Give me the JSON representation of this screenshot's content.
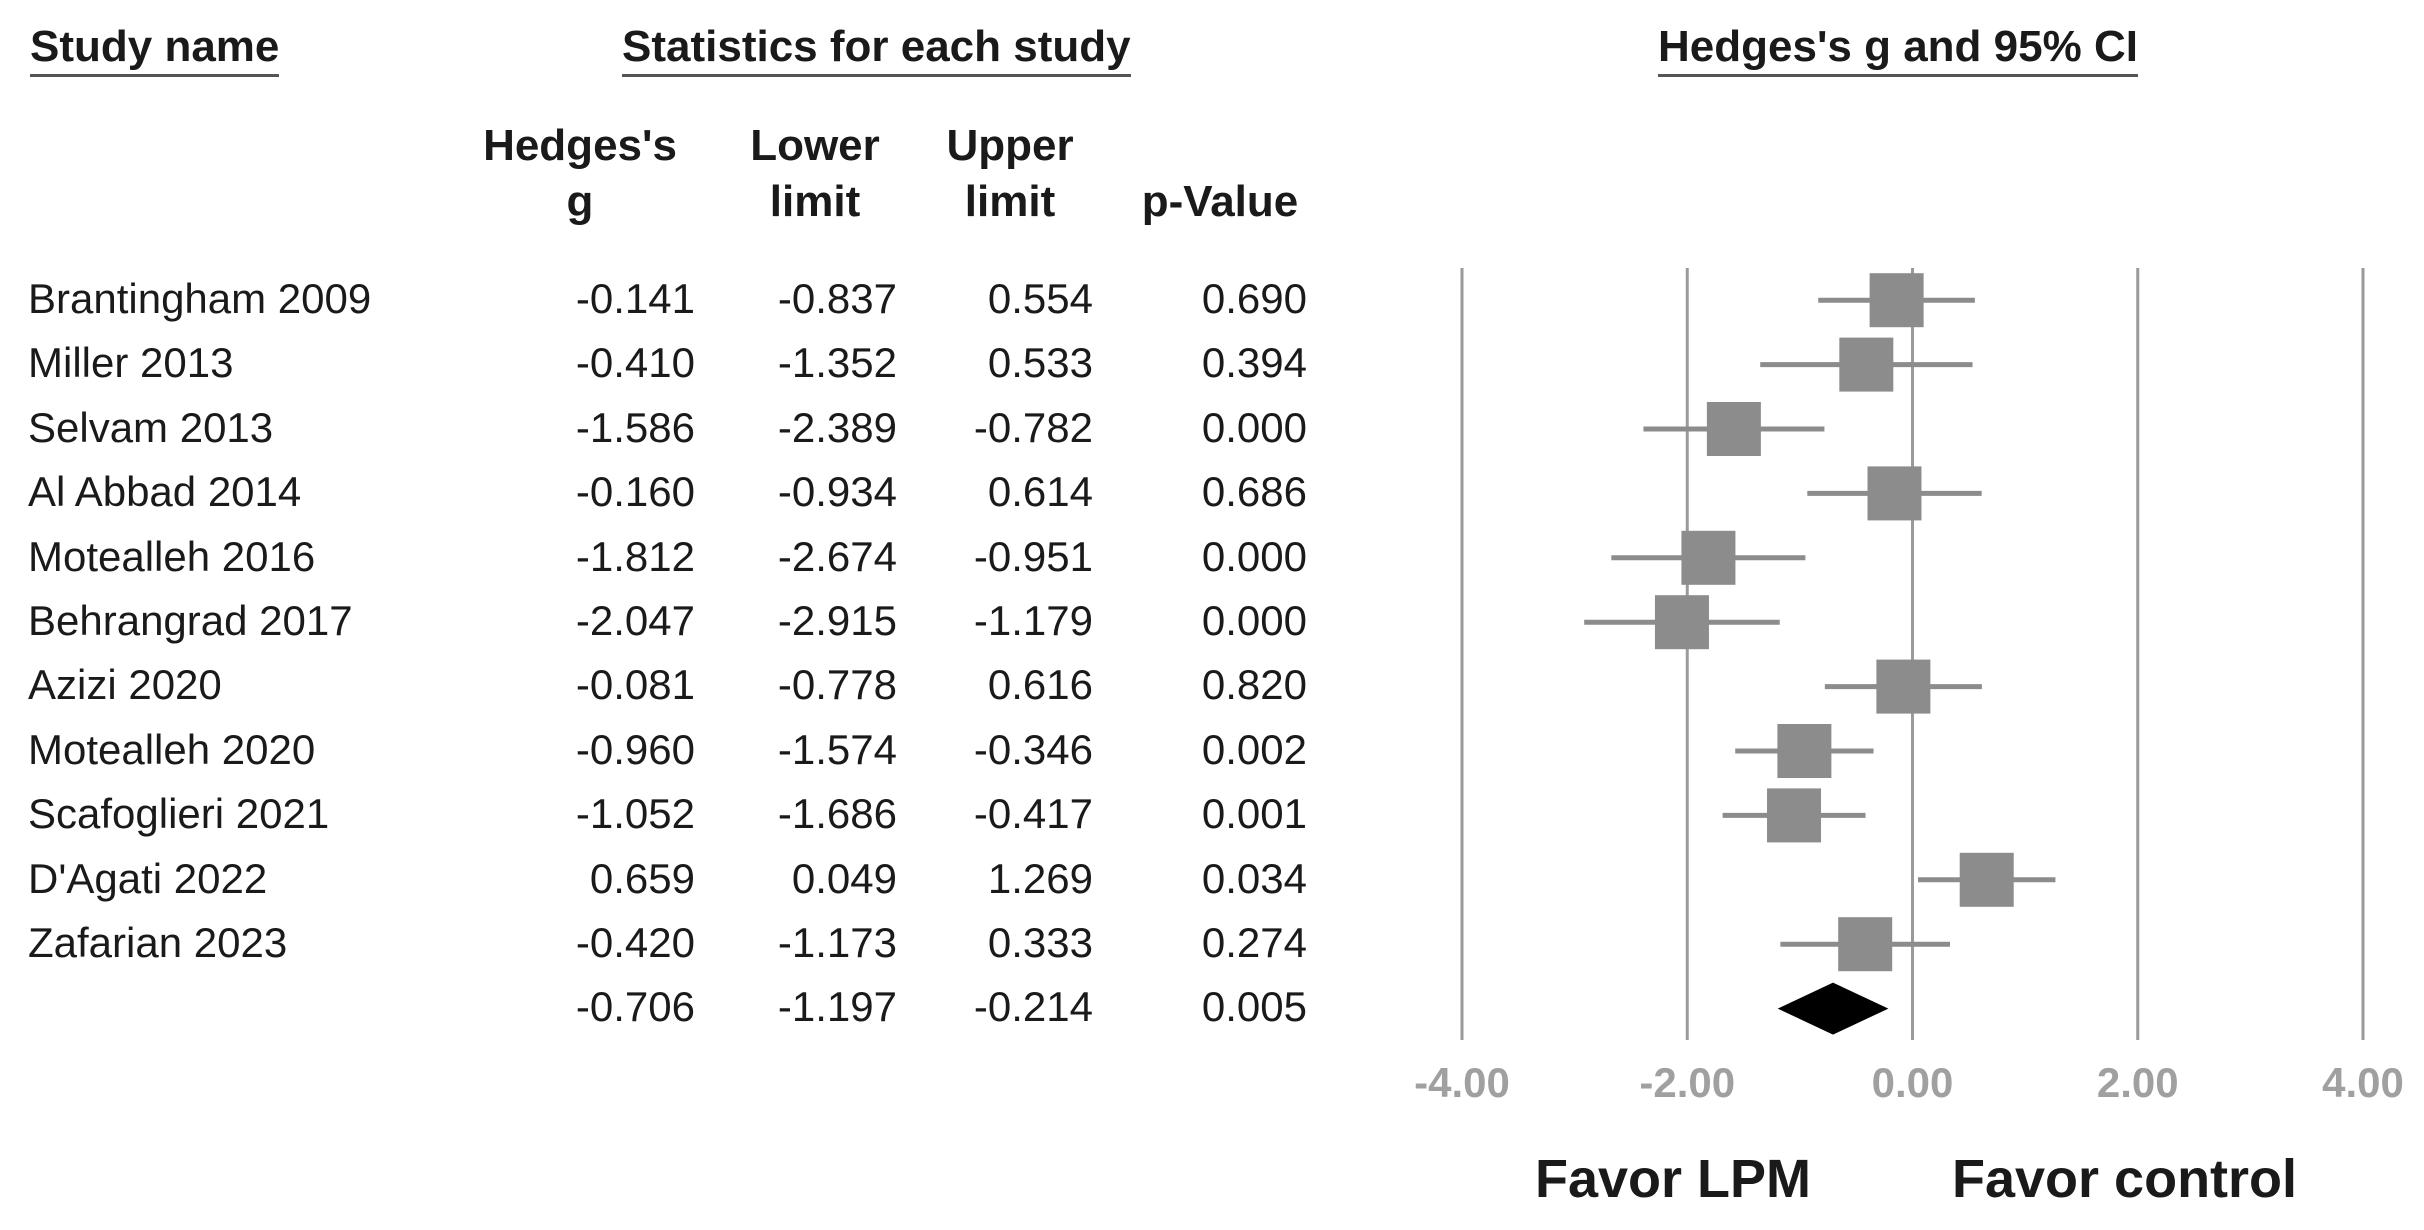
{
  "headers": {
    "study_name": "Study name",
    "statistics": "Statistics for each study",
    "plot_title": "Hedges's g and 95% CI"
  },
  "columns": {
    "g": [
      "Hedges's",
      "g"
    ],
    "lower": [
      "Lower",
      "limit"
    ],
    "upper": [
      "Upper",
      "limit"
    ],
    "p": [
      "",
      "p-Value"
    ]
  },
  "rows": [
    {
      "name": "Brantingham 2009",
      "g": "-0.141",
      "lower": "-0.837",
      "upper": "0.554",
      "p": "0.690"
    },
    {
      "name": "Miller 2013",
      "g": "-0.410",
      "lower": "-1.352",
      "upper": "0.533",
      "p": "0.394"
    },
    {
      "name": "Selvam 2013",
      "g": "-1.586",
      "lower": "-2.389",
      "upper": "-0.782",
      "p": "0.000"
    },
    {
      "name": "Al Abbad 2014",
      "g": "-0.160",
      "lower": "-0.934",
      "upper": "0.614",
      "p": "0.686"
    },
    {
      "name": "Motealleh 2016",
      "g": "-1.812",
      "lower": "-2.674",
      "upper": "-0.951",
      "p": "0.000"
    },
    {
      "name": "Behrangrad 2017",
      "g": "-2.047",
      "lower": "-2.915",
      "upper": "-1.179",
      "p": "0.000"
    },
    {
      "name": "Azizi 2020",
      "g": "-0.081",
      "lower": "-0.778",
      "upper": "0.616",
      "p": "0.820"
    },
    {
      "name": "Motealleh 2020",
      "g": "-0.960",
      "lower": "-1.574",
      "upper": "-0.346",
      "p": "0.002"
    },
    {
      "name": "Scafoglieri 2021",
      "g": "-1.052",
      "lower": "-1.686",
      "upper": "-0.417",
      "p": "0.001"
    },
    {
      "name": "D'Agati 2022",
      "g": "0.659",
      "lower": "0.049",
      "upper": "1.269",
      "p": "0.034"
    },
    {
      "name": "Zafarian 2023",
      "g": "-0.420",
      "lower": "-1.173",
      "upper": "0.333",
      "p": "0.274"
    }
  ],
  "summary": {
    "name": "",
    "g": "-0.706",
    "lower": "-1.197",
    "upper": "-0.214",
    "p": "0.005"
  },
  "favor": {
    "left": "Favor LPM",
    "right": "Favor control"
  },
  "colors": {
    "marker": "#8c8c8c",
    "diamond": "#000000",
    "gridline": "#9a9a9a",
    "tick_label": "#a0a0a0"
  },
  "chart_data": {
    "type": "forest",
    "title": "Hedges's g and 95% CI",
    "xlim": [
      -4,
      4
    ],
    "ticks": [
      -4,
      -2,
      0,
      2,
      4
    ],
    "tick_labels": [
      "-4.00",
      "-2.00",
      "0.00",
      "2.00",
      "4.00"
    ],
    "studies": [
      {
        "name": "Brantingham 2009",
        "g": -0.141,
        "lower": -0.837,
        "upper": 0.554
      },
      {
        "name": "Miller 2013",
        "g": -0.41,
        "lower": -1.352,
        "upper": 0.533
      },
      {
        "name": "Selvam 2013",
        "g": -1.586,
        "lower": -2.389,
        "upper": -0.782
      },
      {
        "name": "Al Abbad 2014",
        "g": -0.16,
        "lower": -0.934,
        "upper": 0.614
      },
      {
        "name": "Motealleh 2016",
        "g": -1.812,
        "lower": -2.674,
        "upper": -0.951
      },
      {
        "name": "Behrangrad 2017",
        "g": -2.047,
        "lower": -2.915,
        "upper": -1.179
      },
      {
        "name": "Azizi 2020",
        "g": -0.081,
        "lower": -0.778,
        "upper": 0.616
      },
      {
        "name": "Motealleh 2020",
        "g": -0.96,
        "lower": -1.574,
        "upper": -0.346
      },
      {
        "name": "Scafoglieri 2021",
        "g": -1.052,
        "lower": -1.686,
        "upper": -0.417
      },
      {
        "name": "D'Agati 2022",
        "g": 0.659,
        "lower": 0.049,
        "upper": 1.269
      },
      {
        "name": "Zafarian 2023",
        "g": -0.42,
        "lower": -1.173,
        "upper": 0.333
      }
    ],
    "summary": {
      "g": -0.706,
      "lower": -1.197,
      "upper": -0.214
    },
    "left_label": "Favor LPM",
    "right_label": "Favor control"
  }
}
